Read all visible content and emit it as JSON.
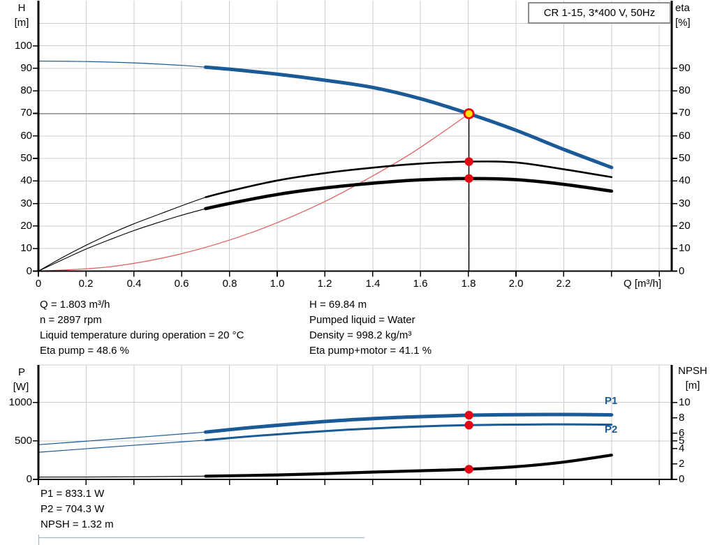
{
  "title_box": {
    "label": "CR 1-15, 3*400 V, 50Hz"
  },
  "colors": {
    "curve_blue": "#1a5a96",
    "curve_black": "#000000",
    "system_red": "#e06262",
    "marker_red": "#e30613",
    "marker_yellow": "#ffe400",
    "grid": "#cccccc",
    "ref_gray": "#7f7f7f",
    "next_section": "#9fb6cc"
  },
  "annotations": {
    "left": [
      "Q = 1.803 m³/h",
      "n = 2897 rpm",
      "Liquid temperature during operation = 20 °C",
      "Eta pump = 48.6 %"
    ],
    "right": [
      "H = 69.84 m",
      "Pumped liquid = Water",
      "Density = 998.2 kg/m³",
      "Eta pump+motor = 41.1 %"
    ],
    "bottom": [
      "P1 = 833.1 W",
      "P2 = 704.3 W",
      "NPSH = 1.32 m"
    ]
  },
  "chart_data": [
    {
      "type": "line",
      "title": "CR 1-15, 3*400 V, 50Hz",
      "x_axis": {
        "label": "Q [m³/h]",
        "range": [
          0,
          2.652
        ],
        "tick_values": [
          0,
          0.2,
          0.4,
          0.6,
          0.8,
          1.0,
          1.2,
          1.4,
          1.6,
          1.8,
          2.0,
          2.2,
          2.4,
          2.6
        ],
        "labeled_until": 2.2
      },
      "y_left": {
        "label": "H",
        "unit": "[m]",
        "range": [
          0,
          120
        ],
        "ticks": [
          0,
          10,
          20,
          30,
          40,
          50,
          60,
          70,
          80,
          90,
          100
        ],
        "grid": [
          10,
          20,
          30,
          40,
          50,
          60,
          70,
          80,
          90,
          100,
          110
        ]
      },
      "y_right": {
        "label": "eta",
        "unit": "[%]",
        "range": [
          0,
          120
        ],
        "ticks": [
          0,
          10,
          20,
          30,
          40,
          50,
          60,
          70,
          80,
          90
        ]
      },
      "series": [
        {
          "name": "system-curve",
          "axis": "left",
          "color": "#e06262",
          "width_thin": 1.3,
          "width_thick": 1.3,
          "points": [
            [
              0,
              0
            ],
            [
              0.3,
              1.93
            ],
            [
              0.6,
              7.73
            ],
            [
              0.9,
              17.4
            ],
            [
              1.2,
              30.9
            ],
            [
              1.5,
              48.3
            ],
            [
              1.65,
              58.5
            ],
            [
              1.803,
              69.84
            ]
          ]
        },
        {
          "name": "eta-pump-curve",
          "axis": "right",
          "color": "#000000",
          "width_thin": 1.1,
          "width_thick": 2.6,
          "split_q": 0.7,
          "points": [
            [
              0,
              0
            ],
            [
              0.1,
              6
            ],
            [
              0.2,
              11.5
            ],
            [
              0.3,
              16.5
            ],
            [
              0.4,
              21
            ],
            [
              0.5,
              25
            ],
            [
              0.6,
              29
            ],
            [
              0.7,
              32.8
            ],
            [
              0.8,
              35.5
            ],
            [
              1.0,
              40.2
            ],
            [
              1.2,
              43.5
            ],
            [
              1.4,
              45.9
            ],
            [
              1.6,
              47.7
            ],
            [
              1.803,
              48.6
            ],
            [
              2.0,
              48.2
            ],
            [
              2.2,
              45.2
            ],
            [
              2.4,
              41.7
            ]
          ]
        },
        {
          "name": "eta-pump-motor-curve",
          "axis": "right",
          "color": "#000000",
          "width_thin": 1.1,
          "width_thick": 4.6,
          "split_q": 0.7,
          "points": [
            [
              0,
              0
            ],
            [
              0.1,
              5
            ],
            [
              0.2,
              9.8
            ],
            [
              0.3,
              14
            ],
            [
              0.4,
              18
            ],
            [
              0.5,
              21.5
            ],
            [
              0.6,
              24.8
            ],
            [
              0.7,
              27.7
            ],
            [
              0.8,
              30
            ],
            [
              1.0,
              34
            ],
            [
              1.2,
              36.9
            ],
            [
              1.4,
              39
            ],
            [
              1.6,
              40.5
            ],
            [
              1.803,
              41.1
            ],
            [
              2.0,
              40.6
            ],
            [
              2.2,
              38.5
            ],
            [
              2.4,
              35.5
            ]
          ]
        },
        {
          "name": "head-curve",
          "axis": "left",
          "color": "#1a5a96",
          "width_thin": 1.2,
          "width_thick": 5,
          "split_q": 0.7,
          "points": [
            [
              0,
              93.2
            ],
            [
              0.2,
              93.0
            ],
            [
              0.4,
              92.4
            ],
            [
              0.6,
              91.3
            ],
            [
              0.7,
              90.5
            ],
            [
              0.8,
              89.6
            ],
            [
              1.0,
              87.4
            ],
            [
              1.2,
              84.7
            ],
            [
              1.4,
              81.5
            ],
            [
              1.6,
              76.5
            ],
            [
              1.803,
              69.84
            ],
            [
              2.0,
              62.5
            ],
            [
              2.2,
              54.0
            ],
            [
              2.4,
              46.0
            ]
          ]
        }
      ],
      "ref_lines": [
        {
          "name": "head-ref-hline",
          "type": "h",
          "value": 69.84,
          "axis": "left",
          "q_to": 1.803,
          "color": "#7f7f7f",
          "width": 1.3
        },
        {
          "name": "duty-ref-vline",
          "type": "v",
          "q": 1.803,
          "value_from": 69.84,
          "axis": "left",
          "color": "#000000",
          "width": 1.3
        }
      ],
      "markers": [
        {
          "name": "duty-point-marker",
          "q": 1.803,
          "value": 69.84,
          "axis": "left",
          "kind": "duty"
        },
        {
          "name": "eta-pump-marker",
          "q": 1.803,
          "value": 48.6,
          "axis": "right",
          "kind": "dot"
        },
        {
          "name": "eta-pump-motor-marker",
          "q": 1.803,
          "value": 41.1,
          "axis": "right",
          "kind": "dot"
        }
      ]
    },
    {
      "type": "line",
      "x_axis": {
        "label": "",
        "range": [
          0,
          2.652
        ],
        "tick_values": [
          0,
          0.2,
          0.4,
          0.6,
          0.8,
          1.0,
          1.2,
          1.4,
          1.6,
          1.8,
          2.0,
          2.2,
          2.4,
          2.6
        ],
        "labeled_until": -1
      },
      "y_left": {
        "label": "P",
        "unit": "[W]",
        "range": [
          0,
          1485
        ],
        "ticks": [
          0,
          500,
          1000
        ],
        "grid": [
          500,
          1000,
          1485
        ]
      },
      "y_right": {
        "label": "NPSH",
        "unit": "[m]",
        "range": [
          0,
          14.85
        ],
        "ticks": [
          0,
          2,
          4,
          5,
          6,
          8,
          10
        ]
      },
      "p1_label": "P1",
      "p2_label": "P2",
      "series": [
        {
          "name": "p1-curve",
          "axis": "left",
          "color": "#1a5a96",
          "width_thin": 1.2,
          "width_thick": 5,
          "split_q": 0.7,
          "points": [
            [
              0,
              450
            ],
            [
              0.2,
              496
            ],
            [
              0.4,
              542
            ],
            [
              0.6,
              590
            ],
            [
              0.7,
              614
            ],
            [
              0.9,
              676
            ],
            [
              1.1,
              728
            ],
            [
              1.3,
              772
            ],
            [
              1.5,
              804
            ],
            [
              1.7,
              824
            ],
            [
              1.803,
              833.1
            ],
            [
              2.0,
              840
            ],
            [
              2.2,
              842
            ],
            [
              2.4,
              838
            ]
          ]
        },
        {
          "name": "p2-curve",
          "axis": "left",
          "color": "#1a5a96",
          "width_thin": 1.2,
          "width_thick": 3,
          "split_q": 0.7,
          "points": [
            [
              0,
              352
            ],
            [
              0.2,
              398
            ],
            [
              0.4,
              443
            ],
            [
              0.6,
              487
            ],
            [
              0.7,
              509
            ],
            [
              0.9,
              562
            ],
            [
              1.1,
              607
            ],
            [
              1.3,
              646
            ],
            [
              1.5,
              676
            ],
            [
              1.7,
              697
            ],
            [
              1.803,
              704.3
            ],
            [
              2.0,
              711
            ],
            [
              2.2,
              714
            ],
            [
              2.4,
              710
            ]
          ]
        },
        {
          "name": "npsh-curve",
          "axis": "right",
          "color": "#000000",
          "width_thin": 1.1,
          "width_thick": 4.2,
          "split_q": 0.7,
          "points": [
            [
              0,
              0.3
            ],
            [
              0.35,
              0.33
            ],
            [
              0.7,
              0.42
            ],
            [
              1.0,
              0.58
            ],
            [
              1.2,
              0.75
            ],
            [
              1.4,
              0.95
            ],
            [
              1.6,
              1.12
            ],
            [
              1.803,
              1.32
            ],
            [
              2.0,
              1.65
            ],
            [
              2.2,
              2.25
            ],
            [
              2.4,
              3.15
            ]
          ]
        }
      ],
      "ref_lines": [],
      "markers": [
        {
          "name": "p1-marker",
          "q": 1.803,
          "value": 833.1,
          "axis": "left",
          "kind": "dot"
        },
        {
          "name": "p2-marker",
          "q": 1.803,
          "value": 704.3,
          "axis": "left",
          "kind": "dot"
        },
        {
          "name": "npsh-marker",
          "q": 1.803,
          "value": 1.32,
          "axis": "right",
          "kind": "dot"
        }
      ]
    }
  ]
}
